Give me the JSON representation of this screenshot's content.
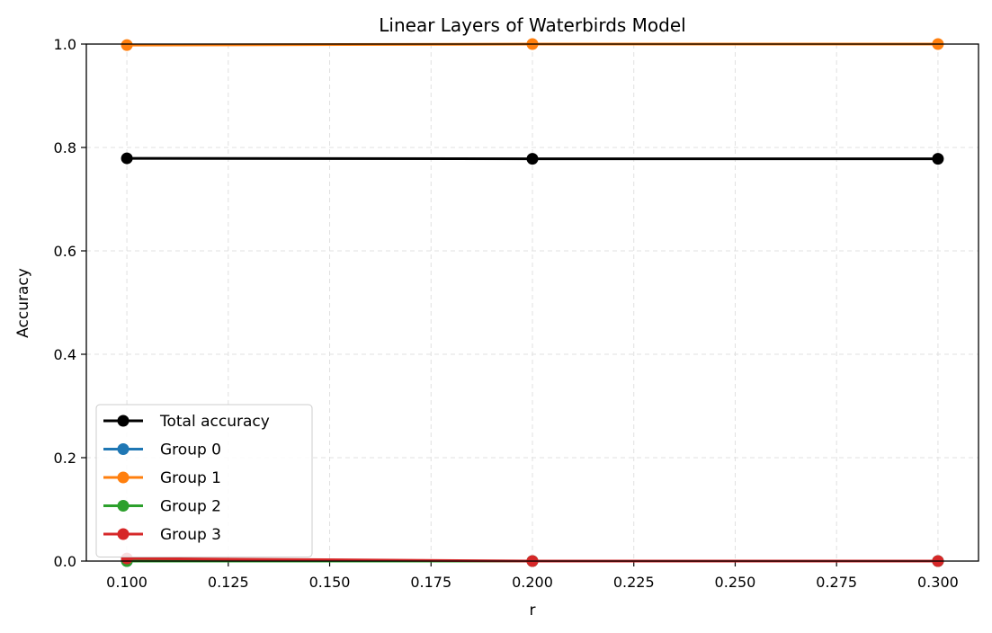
{
  "chart_data": {
    "type": "line",
    "title": "Linear Layers of Waterbirds Model",
    "xlabel": "r",
    "ylabel": "Accuracy",
    "xlim": [
      0.09,
      0.31
    ],
    "ylim": [
      0.0,
      1.0
    ],
    "x": [
      0.1,
      0.2,
      0.3
    ],
    "xticks": [
      "0.100",
      "0.125",
      "0.150",
      "0.175",
      "0.200",
      "0.225",
      "0.250",
      "0.275",
      "0.300"
    ],
    "yticks": [
      "0.0",
      "0.2",
      "0.4",
      "0.6",
      "0.8",
      "1.0"
    ],
    "grid": true,
    "legend_position": "lower-left",
    "series": [
      {
        "name": "Total accuracy",
        "color": "#000000",
        "values": [
          0.779,
          0.778,
          0.778
        ]
      },
      {
        "name": "Group 0",
        "color": "#1f77b4",
        "values": [
          0.0,
          0.0,
          0.0
        ]
      },
      {
        "name": "Group 1",
        "color": "#ff7f0e",
        "values": [
          0.998,
          1.0,
          1.0
        ]
      },
      {
        "name": "Group 2",
        "color": "#2ca02c",
        "values": [
          0.0,
          0.0,
          0.0
        ]
      },
      {
        "name": "Group 3",
        "color": "#d62728",
        "values": [
          0.005,
          0.0,
          0.0
        ]
      }
    ]
  }
}
